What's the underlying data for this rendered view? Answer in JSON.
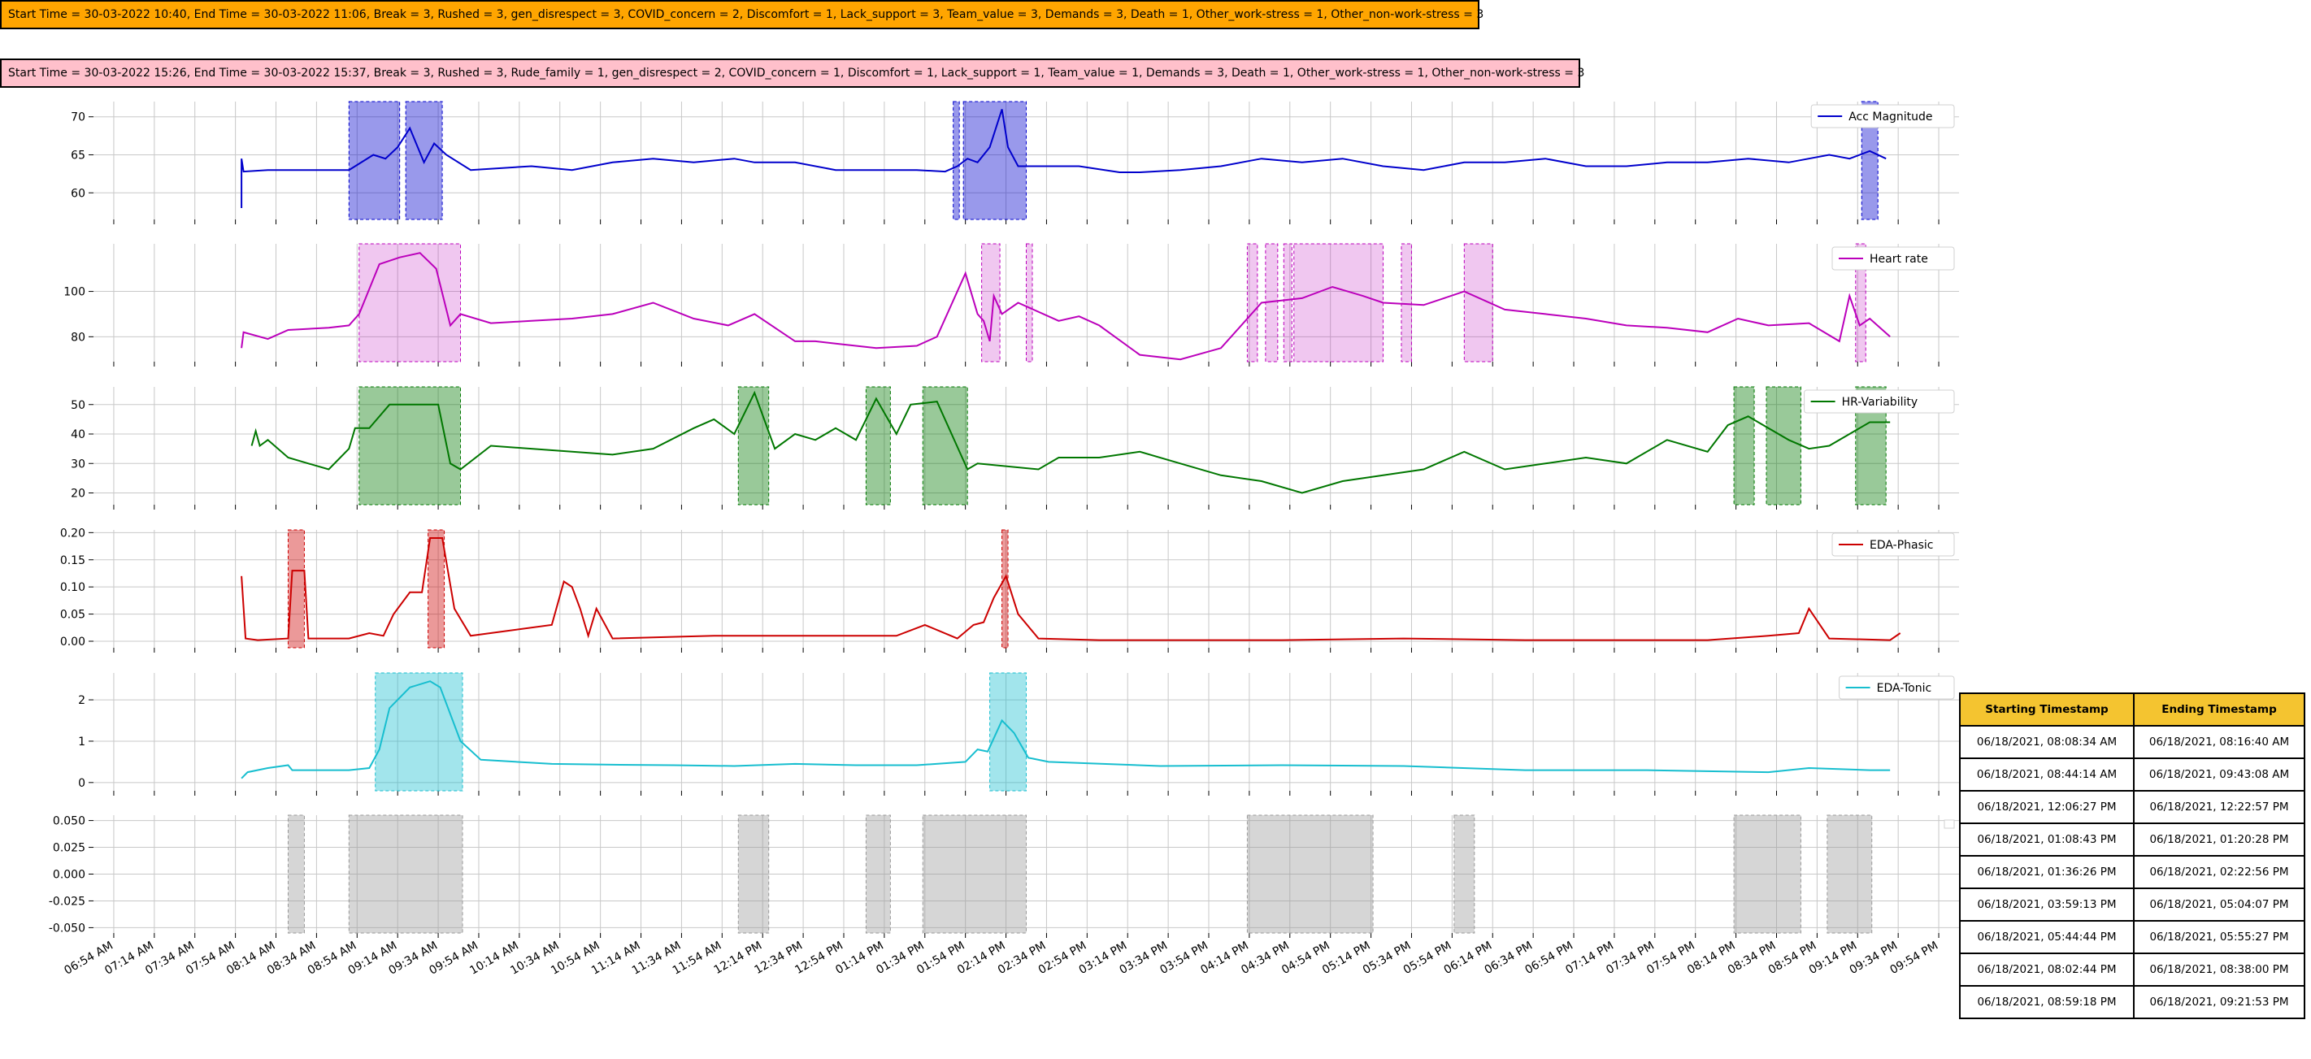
{
  "banners": [
    {
      "text": "Start Time = 30-03-2022 10:40, End Time = 30-03-2022 11:06, Break = 3, Rushed = 3, gen_disrespect = 3, COVID_concern = 2, Discomfort = 1, Lack_support = 3, Team_value = 3, Demands = 3, Death = 1, Other_work-stress = 1, Other_non-work-stress = 3",
      "color": "#FFA500"
    },
    {
      "text": "Start Time = 30-03-2022 15:26, End Time = 30-03-2022 15:37, Break = 3, Rushed = 3, Rude_family = 1, gen_disrespect = 2, COVID_concern = 1, Discomfort = 1, Lack_support = 1, Team_value = 1, Demands = 3, Death = 1, Other_work-stress = 1, Other_non-work-stress = 3",
      "color": "#FFC0CB"
    }
  ],
  "chart_data": {
    "type": "line",
    "x_tick_labels": [
      "06:54 AM",
      "07:14 AM",
      "07:34 AM",
      "07:54 AM",
      "08:14 AM",
      "08:34 AM",
      "08:54 AM",
      "09:14 AM",
      "09:34 AM",
      "09:54 AM",
      "10:14 AM",
      "10:34 AM",
      "10:54 AM",
      "11:14 AM",
      "11:34 AM",
      "11:54 AM",
      "12:14 PM",
      "12:34 PM",
      "12:54 PM",
      "01:14 PM",
      "01:34 PM",
      "01:54 PM",
      "02:14 PM",
      "02:34 PM",
      "02:54 PM",
      "03:14 PM",
      "03:34 PM",
      "03:54 PM",
      "04:14 PM",
      "04:34 PM",
      "04:54 PM",
      "05:14 PM",
      "05:34 PM",
      "05:54 PM",
      "06:14 PM",
      "06:34 PM",
      "06:54 PM",
      "07:14 PM",
      "07:34 PM",
      "07:54 PM",
      "08:14 PM",
      "08:34 PM",
      "08:54 PM",
      "09:14 PM",
      "09:34 PM",
      "09:54 PM"
    ],
    "x_range": [
      "06:44 AM",
      "10:04 PM"
    ],
    "grid": true,
    "legend_placement": "top-right",
    "panels": [
      {
        "name": "Acc Magnitude",
        "color": "#0000CC",
        "ylim": [
          56.5,
          72
        ],
        "yticks": [
          60,
          65,
          70
        ],
        "x": [
          "07:57 AM",
          "07:57 AM",
          "07:58 AM",
          "08:10 AM",
          "08:50 AM",
          "09:02 AM",
          "09:08 AM",
          "09:14 AM",
          "09:20 AM",
          "09:27 AM",
          "09:32 AM",
          "09:38 AM",
          "09:50 AM",
          "10:20 AM",
          "10:40 AM",
          "11:00 AM",
          "11:20 AM",
          "11:40 AM",
          "12:00 PM",
          "12:10 PM",
          "12:30 PM",
          "12:50 PM",
          "01:10 PM",
          "01:30 PM",
          "01:44 PM",
          "01:50 PM",
          "01:55 PM",
          "02:00 PM",
          "02:06 PM",
          "02:12 PM",
          "02:15 PM",
          "02:20 PM",
          "02:30 PM",
          "02:50 PM",
          "03:10 PM",
          "03:20 PM",
          "03:40 PM",
          "04:00 PM",
          "04:20 PM",
          "04:40 PM",
          "05:00 PM",
          "05:20 PM",
          "05:40 PM",
          "06:00 PM",
          "06:20 PM",
          "06:40 PM",
          "07:00 PM",
          "07:20 PM",
          "07:40 PM",
          "08:00 PM",
          "08:20 PM",
          "08:40 PM",
          "09:00 PM",
          "09:10 PM",
          "09:20 PM",
          "09:28 PM"
        ],
        "y": [
          58,
          64.5,
          62.8,
          63,
          63,
          65,
          64.5,
          66,
          68.5,
          64,
          66.5,
          65,
          63,
          63.5,
          63,
          64,
          64.5,
          64,
          64.5,
          64,
          64,
          63,
          63,
          63,
          62.8,
          63.5,
          64.5,
          64,
          66,
          71,
          66,
          63.5,
          63.5,
          63.5,
          62.7,
          62.7,
          63,
          63.5,
          64.5,
          64,
          64.5,
          63.5,
          63,
          64,
          64,
          64.5,
          63.5,
          63.5,
          64,
          64,
          64.5,
          64,
          65,
          64.5,
          65.5,
          64.5
        ],
        "highlights": [
          [
            "08:50 AM",
            "09:15 AM"
          ],
          [
            "09:18 AM",
            "09:36 AM"
          ],
          [
            "01:48 PM",
            "01:51 PM"
          ],
          [
            "01:53 PM",
            "02:24 PM"
          ],
          [
            "09:16 PM",
            "09:24 PM"
          ]
        ]
      },
      {
        "name": "Heart rate",
        "color": "#BB00BB",
        "ylim": [
          69,
          121
        ],
        "yticks": [
          80,
          100
        ],
        "x": [
          "07:57 AM",
          "07:58 AM",
          "08:10 AM",
          "08:20 AM",
          "08:40 AM",
          "08:50 AM",
          "08:55 AM",
          "09:05 AM",
          "09:15 AM",
          "09:25 AM",
          "09:33 AM",
          "09:40 AM",
          "09:45 AM",
          "10:00 AM",
          "10:20 AM",
          "10:40 AM",
          "11:00 AM",
          "11:20 AM",
          "11:40 AM",
          "11:57 AM",
          "12:10 PM",
          "12:30 PM",
          "12:40 PM",
          "12:50 PM",
          "01:10 PM",
          "01:30 PM",
          "01:40 PM",
          "01:54 PM",
          "02:00 PM",
          "02:03 PM",
          "02:06 PM",
          "02:08 PM",
          "02:12 PM",
          "02:20 PM",
          "02:40 PM",
          "02:50 PM",
          "03:00 PM",
          "03:20 PM",
          "03:40 PM",
          "04:00 PM",
          "04:20 PM",
          "04:40 PM",
          "04:55 PM",
          "05:10 PM",
          "05:20 PM",
          "05:40 PM",
          "05:50 PM",
          "06:00 PM",
          "06:20 PM",
          "06:40 PM",
          "07:00 PM",
          "07:20 PM",
          "07:40 PM",
          "08:00 PM",
          "08:15 PM",
          "08:30 PM",
          "08:50 PM",
          "09:05 PM",
          "09:10 PM",
          "09:15 PM",
          "09:20 PM",
          "09:30 PM"
        ],
        "y": [
          75,
          82,
          79,
          83,
          84,
          85,
          90,
          112,
          115,
          117,
          110,
          85,
          90,
          86,
          87,
          88,
          90,
          95,
          88,
          85,
          90,
          78,
          78,
          77,
          75,
          76,
          80,
          108,
          90,
          87,
          78,
          98,
          90,
          95,
          87,
          89,
          85,
          72,
          70,
          75,
          95,
          97,
          102,
          98,
          95,
          94,
          97,
          100,
          92,
          90,
          88,
          85,
          84,
          82,
          88,
          85,
          86,
          78,
          98,
          85,
          88,
          80
        ],
        "highlights": [
          [
            "08:55 AM",
            "09:45 AM"
          ],
          [
            "02:02 PM",
            "02:11 PM"
          ],
          [
            "02:24 PM",
            "02:27 PM"
          ],
          [
            "04:13 PM",
            "04:18 PM"
          ],
          [
            "04:22 PM",
            "04:28 PM"
          ],
          [
            "04:31 PM",
            "04:35 PM"
          ],
          [
            "04:36 PM",
            "05:20 PM"
          ],
          [
            "05:29 PM",
            "05:34 PM"
          ],
          [
            "06:00 PM",
            "06:14 PM"
          ],
          [
            "09:13 PM",
            "09:18 PM"
          ]
        ]
      },
      {
        "name": "HR-Variability",
        "color": "#007700",
        "ylim": [
          16,
          56
        ],
        "yticks": [
          20,
          30,
          40,
          50
        ],
        "x": [
          "08:02 AM",
          "08:04 AM",
          "08:06 AM",
          "08:10 AM",
          "08:20 AM",
          "08:30 AM",
          "08:40 AM",
          "08:50 AM",
          "08:53 AM",
          "09:00 AM",
          "09:10 AM",
          "09:20 AM",
          "09:34 AM",
          "09:40 AM",
          "09:45 AM",
          "10:00 AM",
          "10:20 AM",
          "10:40 AM",
          "11:00 AM",
          "11:20 AM",
          "11:40 AM",
          "11:50 AM",
          "12:00 PM",
          "12:10 PM",
          "12:20 PM",
          "12:30 PM",
          "12:40 PM",
          "12:50 PM",
          "01:00 PM",
          "01:10 PM",
          "01:20 PM",
          "01:27 PM",
          "01:40 PM",
          "01:55 PM",
          "02:00 PM",
          "02:30 PM",
          "02:40 PM",
          "03:00 PM",
          "03:20 PM",
          "03:40 PM",
          "04:00 PM",
          "04:20 PM",
          "04:40 PM",
          "05:00 PM",
          "05:20 PM",
          "05:40 PM",
          "06:00 PM",
          "06:20 PM",
          "06:40 PM",
          "07:00 PM",
          "07:20 PM",
          "07:40 PM",
          "08:00 PM",
          "08:10 PM",
          "08:20 PM",
          "08:40 PM",
          "08:50 PM",
          "09:00 PM",
          "09:20 PM",
          "09:30 PM"
        ],
        "y": [
          36,
          41,
          36,
          38,
          32,
          30,
          28,
          35,
          42,
          42,
          50,
          50,
          50,
          30,
          28,
          36,
          35,
          34,
          33,
          35,
          42,
          45,
          40,
          54,
          35,
          40,
          38,
          42,
          38,
          52,
          40,
          50,
          51,
          28,
          30,
          28,
          32,
          32,
          34,
          30,
          26,
          24,
          20,
          24,
          26,
          28,
          34,
          28,
          30,
          32,
          30,
          38,
          34,
          43,
          46,
          38,
          35,
          36,
          44,
          44
        ],
        "highlights": [
          [
            "08:55 AM",
            "09:45 AM"
          ],
          [
            "12:02 PM",
            "12:17 PM"
          ],
          [
            "01:05 PM",
            "01:17 PM"
          ],
          [
            "01:33 PM",
            "01:55 PM"
          ],
          [
            "08:13 PM",
            "08:23 PM"
          ],
          [
            "08:29 PM",
            "08:46 PM"
          ],
          [
            "09:13 PM",
            "09:28 PM"
          ]
        ]
      },
      {
        "name": "EDA-Phasic",
        "color": "#CC0000",
        "ylim": [
          -0.012,
          0.205
        ],
        "yticks": [
          0.0,
          0.05,
          0.1,
          0.15,
          0.2
        ],
        "x": [
          "07:57 AM",
          "07:59 AM",
          "08:05 AM",
          "08:20 AM",
          "08:22 AM",
          "08:28 AM",
          "08:30 AM",
          "08:40 AM",
          "08:50 AM",
          "09:00 AM",
          "09:07 AM",
          "09:12 AM",
          "09:20 AM",
          "09:26 AM",
          "09:30 AM",
          "09:36 AM",
          "09:42 AM",
          "09:50 AM",
          "10:30 AM",
          "10:36 AM",
          "10:40 AM",
          "10:44 AM",
          "10:48 AM",
          "10:52 AM",
          "11:00 AM",
          "11:50 AM",
          "12:10 PM",
          "01:20 PM",
          "01:34 PM",
          "01:50 PM",
          "01:58 PM",
          "02:03 PM",
          "02:08 PM",
          "02:14 PM",
          "02:20 PM",
          "02:30 PM",
          "03:00 PM",
          "04:30 PM",
          "05:30 PM",
          "06:30 PM",
          "07:30 PM",
          "08:00 PM",
          "08:30 PM",
          "08:45 PM",
          "08:50 PM",
          "09:00 PM",
          "09:30 PM",
          "09:35 PM"
        ],
        "y": [
          0.12,
          0.005,
          0.002,
          0.005,
          0.13,
          0.13,
          0.005,
          0.005,
          0.005,
          0.015,
          0.01,
          0.05,
          0.09,
          0.09,
          0.19,
          0.19,
          0.06,
          0.01,
          0.03,
          0.11,
          0.1,
          0.06,
          0.01,
          0.06,
          0.005,
          0.01,
          0.01,
          0.01,
          0.03,
          0.005,
          0.03,
          0.035,
          0.08,
          0.12,
          0.05,
          0.005,
          0.002,
          0.002,
          0.005,
          0.002,
          0.002,
          0.002,
          0.01,
          0.015,
          0.06,
          0.005,
          0.002,
          0.015
        ],
        "highlights": [
          [
            "08:20 AM",
            "08:28 AM"
          ],
          [
            "09:29 AM",
            "09:37 AM"
          ],
          [
            "02:12 PM",
            "02:15 PM"
          ]
        ]
      },
      {
        "name": "EDA-Tonic",
        "color": "#17BECF",
        "ylim": [
          -0.2,
          2.65
        ],
        "yticks": [
          0,
          1,
          2
        ],
        "x": [
          "07:57 AM",
          "08:00 AM",
          "08:10 AM",
          "08:20 AM",
          "08:22 AM",
          "08:30 AM",
          "08:50 AM",
          "09:00 AM",
          "09:05 AM",
          "09:10 AM",
          "09:20 AM",
          "09:30 AM",
          "09:35 AM",
          "09:45 AM",
          "09:55 AM",
          "10:30 AM",
          "11:00 AM",
          "11:30 AM",
          "12:00 PM",
          "12:30 PM",
          "01:00 PM",
          "01:30 PM",
          "01:54 PM",
          "02:00 PM",
          "02:05 PM",
          "02:12 PM",
          "02:18 PM",
          "02:25 PM",
          "02:35 PM",
          "03:30 PM",
          "04:30 PM",
          "05:30 PM",
          "06:30 PM",
          "07:30 PM",
          "08:30 PM",
          "08:50 PM",
          "09:20 PM",
          "09:30 PM"
        ],
        "y": [
          0.1,
          0.25,
          0.35,
          0.42,
          0.3,
          0.3,
          0.3,
          0.35,
          0.8,
          1.8,
          2.3,
          2.45,
          2.3,
          1.0,
          0.55,
          0.45,
          0.43,
          0.42,
          0.4,
          0.45,
          0.42,
          0.42,
          0.5,
          0.8,
          0.75,
          1.5,
          1.2,
          0.6,
          0.5,
          0.4,
          0.42,
          0.4,
          0.3,
          0.3,
          0.25,
          0.35,
          0.3,
          0.3
        ],
        "highlights": [
          [
            "09:03 AM",
            "09:46 AM"
          ],
          [
            "02:06 PM",
            "02:24 PM"
          ]
        ]
      },
      {
        "name": "",
        "color": "#888888",
        "ylim": [
          -0.055,
          0.055
        ],
        "yticks": [
          -0.05,
          -0.025,
          0.0,
          0.025,
          0.05
        ],
        "x": [],
        "y": [],
        "highlights": [
          [
            "08:20 AM",
            "08:28 AM"
          ],
          [
            "08:50 AM",
            "09:46 AM"
          ],
          [
            "12:02 PM",
            "12:17 PM"
          ],
          [
            "01:05 PM",
            "01:17 PM"
          ],
          [
            "01:33 PM",
            "02:24 PM"
          ],
          [
            "04:13 PM",
            "05:15 PM"
          ],
          [
            "05:55 PM",
            "06:05 PM"
          ],
          [
            "08:13 PM",
            "08:46 PM"
          ],
          [
            "08:59 PM",
            "09:21 PM"
          ]
        ]
      }
    ],
    "table": {
      "columns": [
        "Starting Timestamp",
        "Ending Timestamp"
      ],
      "header_color": "#F4C430",
      "rows": [
        [
          "06/18/2021, 08:08:34 AM",
          "06/18/2021, 08:16:40 AM"
        ],
        [
          "06/18/2021, 08:44:14 AM",
          "06/18/2021, 09:43:08 AM"
        ],
        [
          "06/18/2021, 12:06:27 PM",
          "06/18/2021, 12:22:57 PM"
        ],
        [
          "06/18/2021, 01:08:43 PM",
          "06/18/2021, 01:20:28 PM"
        ],
        [
          "06/18/2021, 01:36:26 PM",
          "06/18/2021, 02:22:56 PM"
        ],
        [
          "06/18/2021, 03:59:13 PM",
          "06/18/2021, 05:04:07 PM"
        ],
        [
          "06/18/2021, 05:44:44 PM",
          "06/18/2021, 05:55:27 PM"
        ],
        [
          "06/18/2021, 08:02:44 PM",
          "06/18/2021, 08:38:00 PM"
        ],
        [
          "06/18/2021, 08:59:18 PM",
          "06/18/2021, 09:21:53 PM"
        ]
      ]
    }
  }
}
